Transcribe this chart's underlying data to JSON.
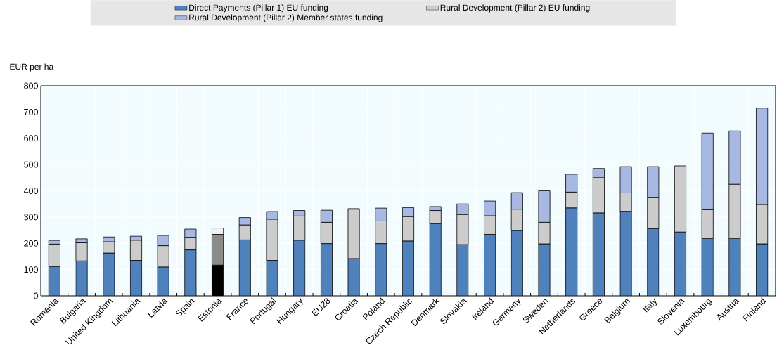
{
  "chart_data": {
    "type": "bar",
    "stacked": true,
    "ylabel": "EUR per ha",
    "legend": "top",
    "grid": true,
    "categories": [
      "Romania",
      "Bulgaria",
      "United Kingdom",
      "Lithuania",
      "Latvia",
      "Spain",
      "Estonia",
      "France",
      "Portugal",
      "Hungary",
      "EU28",
      "Croatia",
      "Poland",
      "Czech Republic",
      "Denmark",
      "Slovakia",
      "Ireland",
      "Germany",
      "Sweden",
      "Netherlands",
      "Greece",
      "Belgium",
      "Italy",
      "Slovenia",
      "Luxembourg",
      "Austria",
      "Finland"
    ],
    "ylim": [
      0,
      800
    ],
    "yticks": [
      0,
      100,
      200,
      300,
      400,
      500,
      600,
      700,
      800
    ],
    "series": [
      {
        "name": "Direct Payments (Pillar 1) EU funding",
        "color": "#4f81bd",
        "colors": [
          "#4f81bd",
          "#4f81bd",
          "#4f81bd",
          "#4f81bd",
          "#4f81bd",
          "#4f81bd",
          "#000000",
          "#4f81bd",
          "#4f81bd",
          "#4f81bd",
          "#4f81bd",
          "#4f81bd",
          "#4f81bd",
          "#4f81bd",
          "#4f81bd",
          "#4f81bd",
          "#4f81bd",
          "#4f81bd",
          "#4f81bd",
          "#4f81bd",
          "#4f81bd",
          "#4f81bd",
          "#4f81bd",
          "#4f81bd",
          "#4f81bd",
          "#4f81bd",
          "#4f81bd"
        ],
        "values": [
          112,
          133,
          163,
          135,
          110,
          175,
          117,
          213,
          135,
          212,
          199,
          142,
          199,
          209,
          275,
          195,
          234,
          249,
          198,
          335,
          316,
          322,
          256,
          243,
          219,
          219,
          198
        ]
      },
      {
        "name": "Rural Development (Pillar 2) EU funding",
        "color": "#cccccc",
        "colors": [
          "#cccccc",
          "#cccccc",
          "#cccccc",
          "#cccccc",
          "#cccccc",
          "#cccccc",
          "#8c8c8c",
          "#cccccc",
          "#cccccc",
          "#cccccc",
          "#cccccc",
          "#cccccc",
          "#cccccc",
          "#cccccc",
          "#cccccc",
          "#cccccc",
          "#cccccc",
          "#cccccc",
          "#cccccc",
          "#cccccc",
          "#cccccc",
          "#cccccc",
          "#cccccc",
          "#cccccc",
          "#cccccc",
          "#cccccc",
          "#cccccc"
        ],
        "values": [
          85,
          69,
          43,
          77,
          81,
          48,
          117,
          57,
          157,
          92,
          81,
          188,
          86,
          93,
          50,
          115,
          71,
          81,
          82,
          60,
          134,
          70,
          118,
          252,
          109,
          206,
          150
        ]
      },
      {
        "name": "Rural Development (Pillar 2) Member states funding",
        "color": "#a7b9e3",
        "colors": [
          "#a7b9e3",
          "#a7b9e3",
          "#a7b9e3",
          "#a7b9e3",
          "#a7b9e3",
          "#a7b9e3",
          "#eef0f5",
          "#a7b9e3",
          "#a7b9e3",
          "#a7b9e3",
          "#a7b9e3",
          "#a7b9e3",
          "#a7b9e3",
          "#a7b9e3",
          "#a7b9e3",
          "#a7b9e3",
          "#a7b9e3",
          "#a7b9e3",
          "#a7b9e3",
          "#a7b9e3",
          "#a7b9e3",
          "#a7b9e3",
          "#a7b9e3",
          "#a7b9e3",
          "#a7b9e3",
          "#a7b9e3",
          "#a7b9e3"
        ],
        "values": [
          14,
          15,
          18,
          15,
          39,
          31,
          24,
          28,
          29,
          21,
          46,
          2,
          49,
          34,
          15,
          40,
          56,
          63,
          120,
          68,
          35,
          100,
          118,
          null,
          292,
          203,
          367
        ]
      }
    ]
  }
}
